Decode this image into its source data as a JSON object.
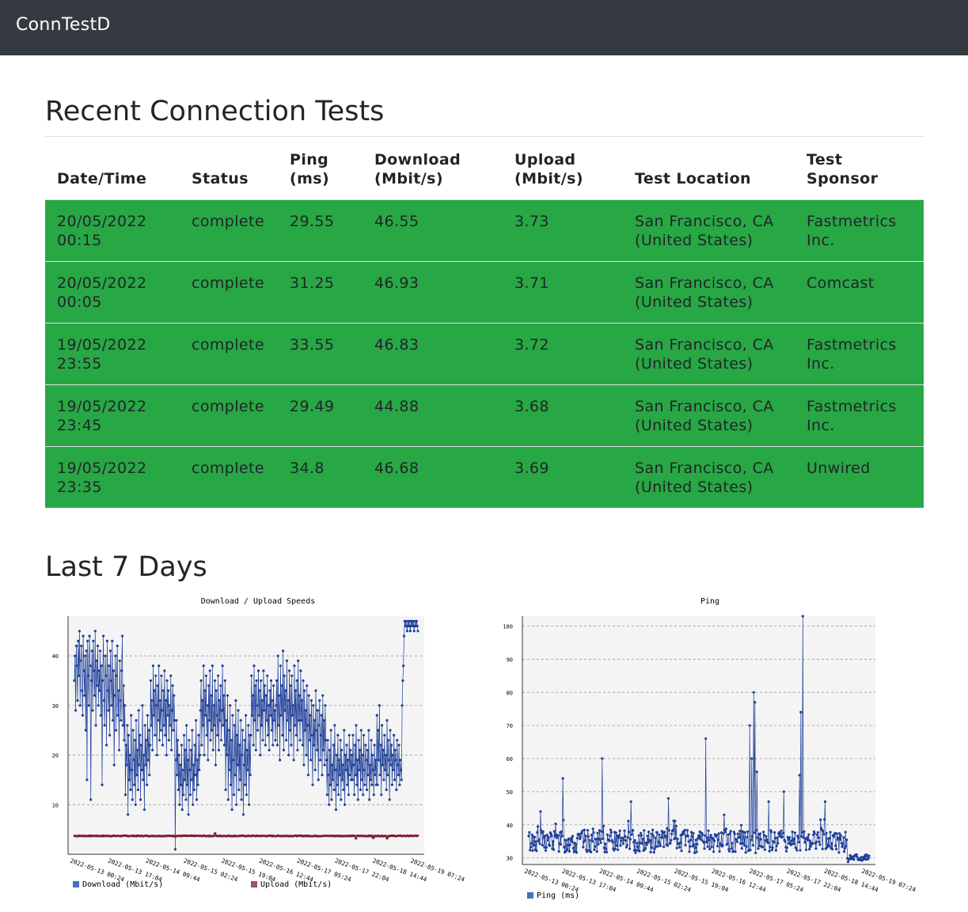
{
  "app": {
    "title": "ConnTestD"
  },
  "sections": {
    "recent": "Recent Connection Tests",
    "last7": "Last 7 Days"
  },
  "table": {
    "headers": [
      "Date/Time",
      "Status",
      "Ping (ms)",
      "Download (Mbit/s)",
      "Upload (Mbit/s)",
      "Test Location",
      "Test Sponsor"
    ],
    "row_color": "#28a745",
    "rows": [
      [
        "20/05/2022 00:15",
        "complete",
        "29.55",
        "46.55",
        "3.73",
        "San Francisco, CA (United States)",
        "Fastmetrics Inc."
      ],
      [
        "20/05/2022 00:05",
        "complete",
        "31.25",
        "46.93",
        "3.71",
        "San Francisco, CA (United States)",
        "Comcast"
      ],
      [
        "19/05/2022 23:55",
        "complete",
        "33.55",
        "46.83",
        "3.72",
        "San Francisco, CA (United States)",
        "Fastmetrics Inc."
      ],
      [
        "19/05/2022 23:45",
        "complete",
        "29.49",
        "44.88",
        "3.68",
        "San Francisco, CA (United States)",
        "Fastmetrics Inc."
      ],
      [
        "19/05/2022 23:35",
        "complete",
        "34.8",
        "46.68",
        "3.69",
        "San Francisco, CA (United States)",
        "Unwired"
      ]
    ]
  },
  "chart_data": [
    {
      "type": "line",
      "title": "Download / Upload Speeds",
      "ylim": [
        0,
        48
      ],
      "yticks": [
        10,
        20,
        30,
        40
      ],
      "x_ticks": [
        "2022-05-13 00:24",
        "2022-05-13 17:04",
        "2022-05-14 09:44",
        "2022-05-15 02:24",
        "2022-05-15 19:04",
        "2022-05-16 12:44",
        "2022-05-17 05:24",
        "2022-05-17 22:04",
        "2022-05-18 14:44",
        "2022-05-19 07:24"
      ],
      "grid": true,
      "legend": "bottom",
      "series": [
        {
          "name": "Download (Mbit/s)",
          "color": "#1f3f99",
          "segments": [
            {
              "n": 40,
              "y": [
                35,
                40,
                29,
                42,
                38,
                31,
                43,
                36,
                45,
                30,
                39,
                42,
                33,
                28,
                44,
                37,
                32,
                40,
                25,
                41,
                15,
                43,
                36,
                30,
                44,
                38,
                11,
                35,
                41,
                29,
                43,
                37,
                32,
                45,
                26,
                39,
                34,
                42,
                30,
                37
              ]
            },
            {
              "n": 40,
              "y": [
                33,
                41,
                28,
                38,
                14,
                35,
                44,
                31,
                26,
                40,
                36,
                22,
                43,
                33,
                29,
                38,
                24,
                41,
                35,
                30,
                43,
                27,
                37,
                18,
                32,
                40,
                25,
                36,
                42,
                28,
                33,
                21,
                39,
                31,
                27,
                37,
                44,
                26,
                34,
                23
              ]
            },
            {
              "n": 40,
              "y": [
                30,
                12,
                22,
                18,
                26,
                8,
                24,
                15,
                20,
                13,
                28,
                17,
                11,
                25,
                19,
                14,
                23,
                10,
                27,
                16,
                21,
                13,
                29,
                18,
                24,
                11,
                22,
                17,
                30,
                15,
                20,
                9,
                26,
                18,
                23,
                14,
                28,
                19,
                25,
                16
              ]
            },
            {
              "n": 40,
              "y": [
                22,
                35,
                26,
                31,
                21,
                38,
                28,
                33,
                24,
                36,
                30,
                20,
                34,
                27,
                38,
                23,
                31,
                25,
                36,
                29,
                22,
                33,
                26,
                37,
                24,
                31,
                20,
                35,
                28,
                33,
                23,
                30,
                26,
                36,
                21,
                29,
                34,
                25,
                32,
                27
              ]
            },
            {
              "n": 40,
              "y": [
                25,
                19,
                27,
                16,
                23,
                13,
                20,
                10,
                18,
                14,
                22,
                9,
                17,
                12,
                24,
                15,
                21,
                11,
                26,
                14,
                19,
                8,
                23,
                17,
                12,
                21,
                15,
                25,
                10,
                18,
                13,
                22,
                16,
                27,
                11,
                19,
                14,
                24,
                17,
                20
              ]
            },
            {
              "n": 40,
              "y": [
                29,
                35,
                22,
                31,
                26,
                38,
                20,
                33,
                28,
                36,
                24,
                30,
                19,
                34,
                27,
                37,
                23,
                32,
                25,
                38,
                21,
                30,
                26,
                35,
                18,
                33,
                28,
                24,
                36,
                21,
                31,
                27,
                34,
                23,
                29,
                38,
                26,
                32,
                22,
                35
              ]
            },
            {
              "n": 40,
              "y": [
                13,
                27,
                20,
                32,
                11,
                25,
                17,
                30,
                14,
                23,
                9,
                28,
                19,
                12,
                26,
                16,
                31,
                10,
                24,
                18,
                29,
                13,
                22,
                15,
                27,
                11,
                20,
                25,
                8,
                18,
                23,
                14,
                28,
                12,
                21,
                17,
                26,
                10,
                24,
                16
              ]
            },
            {
              "n": 40,
              "y": [
                24,
                36,
                28,
                32,
                22,
                38,
                27,
                34,
                21,
                35,
                30,
                25,
                37,
                28,
                33,
                20,
                35,
                26,
                31,
                23,
                37,
                29,
                34,
                22,
                32,
                27,
                36,
                24,
                30,
                21,
                33,
                28,
                35,
                25,
                31,
                22,
                34,
                27,
                29,
                23
              ]
            },
            {
              "n": 40,
              "y": [
                30,
                35,
                22,
                40,
                26,
                32,
                19,
                38,
                28,
                34,
                24,
                41,
                21,
                36,
                29,
                33,
                23,
                39,
                27,
                31,
                20,
                37,
                25,
                34,
                22,
                36,
                28,
                30,
                19,
                38,
                26,
                33,
                24,
                35,
                21,
                39,
                27,
                32,
                23,
                37
              ]
            },
            {
              "n": 40,
              "y": [
                27,
                31,
                22,
                35,
                18,
                33,
                25,
                29,
                20,
                34,
                26,
                16,
                32,
                23,
                28,
                19,
                31,
                24,
                14,
                30,
                22,
                27,
                17,
                33,
                25,
                21,
                29,
                15,
                26,
                31,
                19,
                24,
                28,
                16,
                32,
                21,
                27,
                18,
                30,
                23
              ]
            },
            {
              "n": 40,
              "y": [
                19,
                12,
                23,
                16,
                10,
                21,
                14,
                25,
                11,
                18,
                15,
                22,
                13,
                26,
                17,
                9,
                20,
                14,
                24,
                12,
                19,
                16,
                23,
                11,
                21,
                15,
                18,
                13,
                25,
                10,
                20,
                17,
                22,
                14,
                19,
                12,
                24,
                16,
                21,
                15
              ]
            },
            {
              "n": 40,
              "y": [
                20,
                15,
                24,
                18,
                12,
                22,
                16,
                26,
                14,
                19,
                11,
                23,
                17,
                21,
                13,
                25,
                15,
                20,
                12,
                24,
                17,
                14,
                22,
                19,
                13,
                21,
                16,
                25,
                11,
                18,
                15,
                23,
                14,
                20,
                17,
                12,
                22,
                16,
                19,
                14
              ]
            },
            {
              "n": 40,
              "y": [
                28,
                14,
                25,
                19,
                30,
                16,
                22,
                12,
                26,
                18,
                21,
                15,
                24,
                17,
                20,
                13,
                27,
                16,
                23,
                19,
                11,
                25,
                18,
                22,
                14,
                20,
                17,
                24,
                15,
                21,
                19,
                13,
                23,
                18,
                16,
                22,
                14,
                19,
                17,
                15
              ]
            },
            {
              "n": 26,
              "y": [
                30,
                35,
                38,
                44,
                47,
                46,
                47,
                46,
                45,
                47,
                46,
                47,
                46,
                45,
                47,
                46,
                47,
                46,
                47,
                45,
                46,
                47,
                46,
                47,
                46,
                45
              ]
            }
          ]
        },
        {
          "name": "Upload (Mbit/s)",
          "color": "#7a1c2e",
          "points": 520,
          "base": 3.7,
          "jitter": 0.08,
          "dips": [
            {
              "pos": 0.82,
              "y": 3.2
            },
            {
              "pos": 0.87,
              "y": 3.3
            },
            {
              "pos": 0.91,
              "y": 3.2
            },
            {
              "pos": 0.41,
              "y": 4.2
            }
          ]
        }
      ]
    },
    {
      "type": "line",
      "title": "Ping",
      "ylim": [
        28,
        103
      ],
      "yticks": [
        30,
        40,
        50,
        60,
        70,
        80,
        90,
        100
      ],
      "x_ticks": [
        "2022-05-13 00:24",
        "2022-05-13 17:04",
        "2022-05-14 09:44",
        "2022-05-15 02:24",
        "2022-05-15 19:04",
        "2022-05-16 12:44",
        "2022-05-17 05:24",
        "2022-05-17 22:04",
        "2022-05-18 14:44",
        "2022-05-19 07:24"
      ],
      "grid": true,
      "legend": "bottom",
      "series": [
        {
          "name": "Ping (ms)",
          "color": "#1f3f99",
          "points": 520,
          "base": 35,
          "jitter": 3.5,
          "spikes": [
            {
              "pos": 0.035,
              "y": 44
            },
            {
              "pos": 0.1,
              "y": 54
            },
            {
              "pos": 0.215,
              "y": 60
            },
            {
              "pos": 0.3,
              "y": 47
            },
            {
              "pos": 0.41,
              "y": 48
            },
            {
              "pos": 0.52,
              "y": 66
            },
            {
              "pos": 0.575,
              "y": 43
            },
            {
              "pos": 0.65,
              "y": 70
            },
            {
              "pos": 0.655,
              "y": 60
            },
            {
              "pos": 0.66,
              "y": 80
            },
            {
              "pos": 0.665,
              "y": 77
            },
            {
              "pos": 0.67,
              "y": 56
            },
            {
              "pos": 0.705,
              "y": 47
            },
            {
              "pos": 0.75,
              "y": 50
            },
            {
              "pos": 0.795,
              "y": 55
            },
            {
              "pos": 0.8,
              "y": 74
            },
            {
              "pos": 0.805,
              "y": 103
            },
            {
              "pos": 0.87,
              "y": 47
            }
          ],
          "tail": {
            "from": 0.935,
            "base": 30,
            "jitter": 1.2
          }
        }
      ]
    }
  ]
}
